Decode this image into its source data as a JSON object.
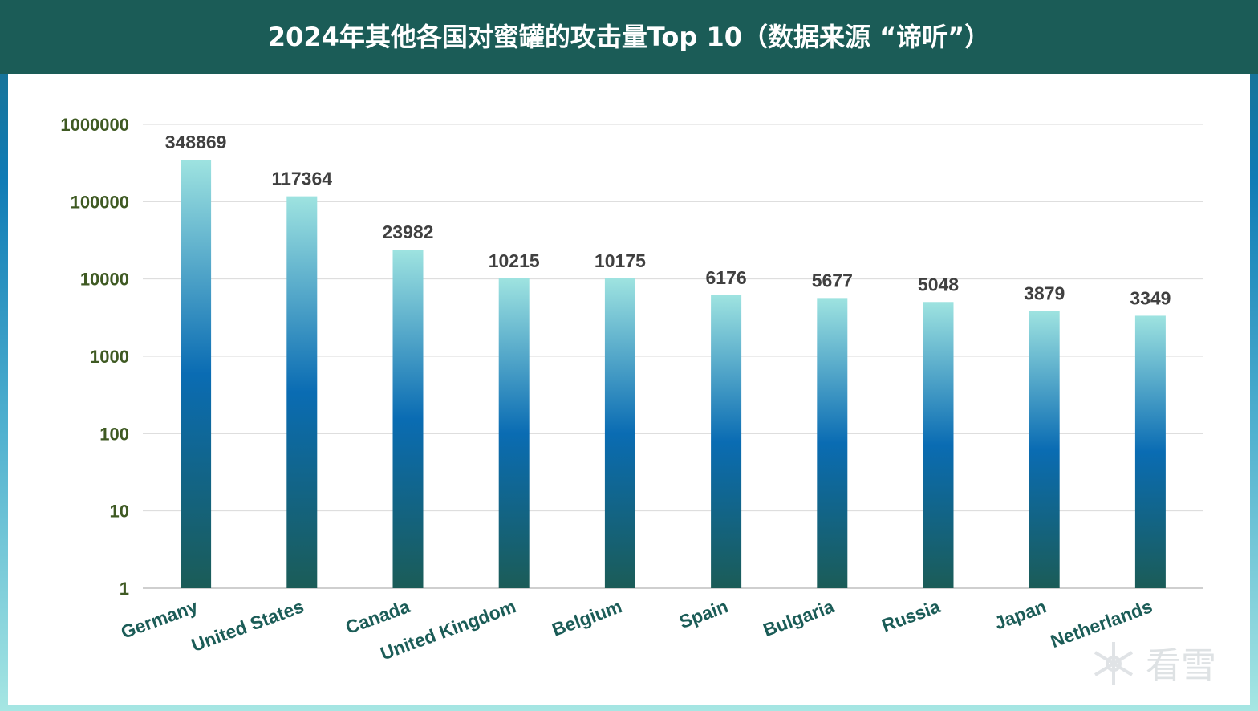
{
  "header": {
    "title": "2024年其他各国对蜜罐的攻击量Top 10（数据来源 “谛听”）"
  },
  "chart_data": {
    "type": "bar",
    "title": "2024年其他各国对蜜罐的攻击量Top 10（数据来源 “谛听”）",
    "y_scale": "log",
    "ylim": [
      1,
      1000000
    ],
    "y_ticks": [
      "1",
      "10",
      "100",
      "1000",
      "10000",
      "100000",
      "1000000"
    ],
    "grid": true,
    "legend": "none",
    "categories": [
      "Germany",
      "United States",
      "Canada",
      "United Kingdom",
      "Belgium",
      "Spain",
      "Bulgaria",
      "Russia",
      "Japan",
      "Netherlands"
    ],
    "values": [
      348869,
      117364,
      23982,
      10215,
      10175,
      6176,
      5677,
      5048,
      3879,
      3349
    ],
    "colors": {
      "bar_top": "#9ee3e0",
      "bar_middle": "#0a6cb3",
      "bar_bottom": "#1b5c57",
      "axis_tick_text": "#3f5a23",
      "category_text": "#1b5c57",
      "data_label_text": "#404040",
      "header_bg": "#1b5c57"
    }
  },
  "watermark": {
    "icon": "snowflake-icon",
    "text": "看雪"
  }
}
